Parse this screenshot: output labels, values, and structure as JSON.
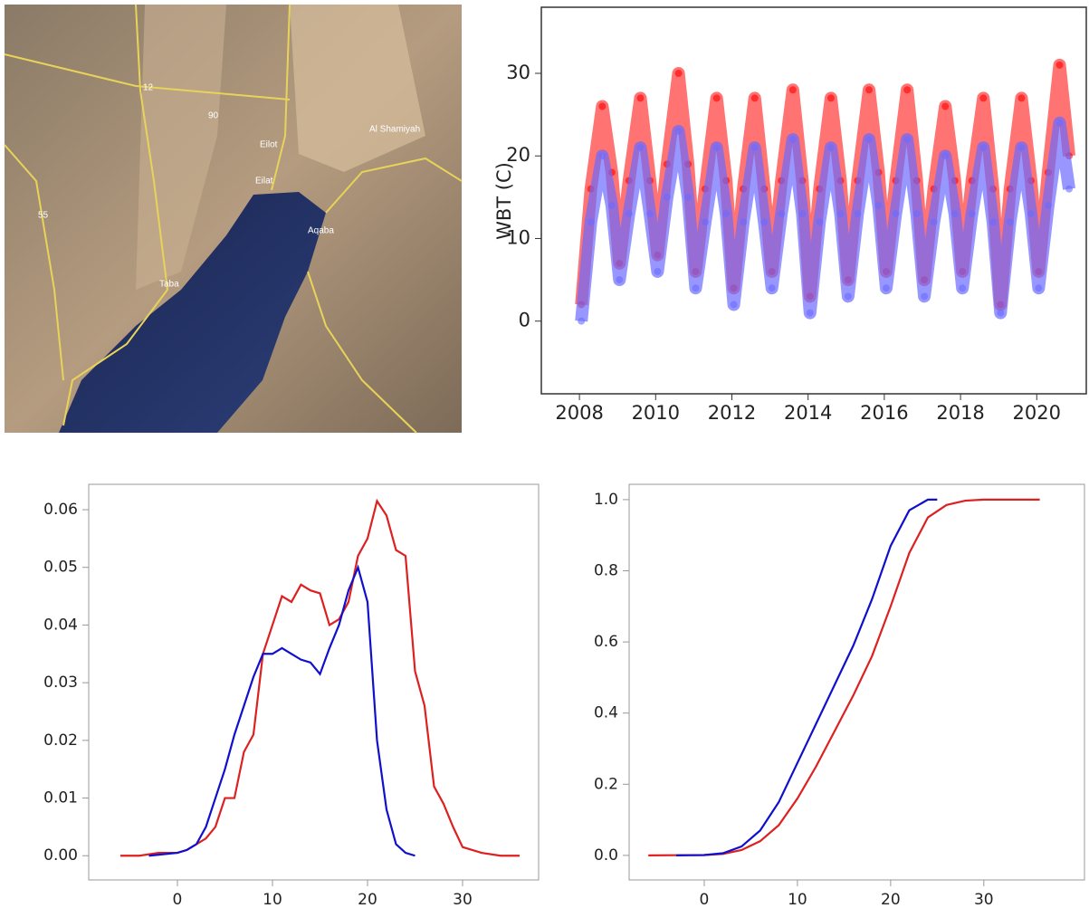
{
  "map": {
    "labels": [
      "Eilat",
      "Eilot",
      "Aqaba",
      "Taba",
      "Al Shamiyah",
      "90",
      "12",
      "55"
    ]
  },
  "chart_data": [
    {
      "type": "scatter",
      "y_label": "WBT (C)",
      "xlim": [
        2007.0,
        2021.3
      ],
      "xticks": [
        2008,
        2010,
        2012,
        2014,
        2016,
        2018,
        2020
      ],
      "ylim": [
        -8.8,
        38
      ],
      "yticks": [
        0,
        10,
        20,
        30
      ],
      "x": [
        2008.05,
        2008.3,
        2008.6,
        2008.85,
        2009.05,
        2009.3,
        2009.6,
        2009.85,
        2010.05,
        2010.3,
        2010.6,
        2010.85,
        2011.05,
        2011.3,
        2011.6,
        2011.85,
        2012.05,
        2012.3,
        2012.6,
        2012.85,
        2013.05,
        2013.3,
        2013.6,
        2013.85,
        2014.05,
        2014.3,
        2014.6,
        2014.85,
        2015.05,
        2015.3,
        2015.6,
        2015.85,
        2016.05,
        2016.3,
        2016.6,
        2016.85,
        2017.05,
        2017.3,
        2017.6,
        2017.85,
        2018.05,
        2018.3,
        2018.6,
        2018.85,
        2019.05,
        2019.3,
        2019.6,
        2019.85,
        2020.05,
        2020.3,
        2020.6,
        2020.85
      ],
      "series": [
        {
          "color": "#ff0000",
          "values": [
            2,
            16,
            26,
            18,
            7,
            17,
            27,
            17,
            8,
            19,
            30,
            19,
            6,
            16,
            27,
            17,
            4,
            16,
            27,
            16,
            6,
            17,
            28,
            17,
            3,
            16,
            27,
            17,
            5,
            17,
            28,
            18,
            6,
            17,
            28,
            17,
            5,
            16,
            26,
            17,
            6,
            17,
            27,
            16,
            2,
            16,
            27,
            17,
            6,
            18,
            31,
            20
          ]
        },
        {
          "color": "#6b6bff",
          "values": [
            0,
            12,
            20,
            14,
            5,
            13,
            21,
            13,
            6,
            15,
            23,
            15,
            4,
            12,
            21,
            13,
            2,
            12,
            21,
            12,
            4,
            13,
            22,
            13,
            1,
            12,
            21,
            13,
            3,
            13,
            22,
            14,
            4,
            13,
            22,
            13,
            3,
            12,
            20,
            13,
            4,
            13,
            21,
            12,
            1,
            12,
            21,
            13,
            4,
            14,
            24,
            16
          ]
        }
      ]
    },
    {
      "type": "line",
      "xlim": [
        -9.33,
        38
      ],
      "xticks": [
        0,
        10,
        20,
        30
      ],
      "ylim": [
        -0.0042,
        0.0644
      ],
      "yticks": [
        {
          "value": 0,
          "label": "0.00"
        },
        {
          "value": 0.01,
          "label": "0.01"
        },
        {
          "value": 0.02,
          "label": "0.02"
        },
        {
          "value": 0.03,
          "label": "0.03"
        },
        {
          "value": 0.04,
          "label": "0.04"
        },
        {
          "value": 0.05,
          "label": "0.05"
        },
        {
          "value": 0.06,
          "label": "0.06"
        }
      ],
      "series": [
        {
          "color": "#dd2020",
          "x": [
            -6,
            -4,
            -2,
            0,
            1,
            2,
            3,
            4,
            5,
            6,
            7,
            8,
            9,
            10,
            11,
            12,
            13,
            14,
            15,
            16,
            17,
            18,
            19,
            20,
            21,
            22,
            23,
            24,
            25,
            26,
            27,
            28,
            29,
            30,
            32,
            34,
            36
          ],
          "values": [
            0,
            0,
            0.0005,
            0.0005,
            0.001,
            0.002,
            0.003,
            0.005,
            0.01,
            0.01,
            0.018,
            0.021,
            0.035,
            0.04,
            0.045,
            0.044,
            0.047,
            0.046,
            0.0455,
            0.04,
            0.041,
            0.044,
            0.052,
            0.055,
            0.0615,
            0.059,
            0.053,
            0.052,
            0.032,
            0.026,
            0.012,
            0.009,
            0.005,
            0.0015,
            0.0005,
            0,
            0
          ]
        },
        {
          "color": "#1010cc",
          "x": [
            -3,
            0,
            1,
            2,
            3,
            4,
            5,
            6,
            7,
            8,
            9,
            10,
            11,
            12,
            13,
            14,
            15,
            16,
            17,
            18,
            19,
            20,
            21,
            22,
            23,
            24,
            25
          ],
          "values": [
            0,
            0.0005,
            0.001,
            0.002,
            0.005,
            0.01,
            0.015,
            0.021,
            0.026,
            0.031,
            0.035,
            0.035,
            0.036,
            0.035,
            0.034,
            0.0335,
            0.0315,
            0.036,
            0.04,
            0.046,
            0.05,
            0.044,
            0.02,
            0.008,
            0.002,
            0.0005,
            0
          ]
        }
      ]
    },
    {
      "type": "line",
      "xlim": [
        -8.06,
        40.8
      ],
      "xticks": [
        0,
        10,
        20,
        30
      ],
      "ylim": [
        -0.069,
        1.043
      ],
      "yticks": [
        {
          "value": 0,
          "label": "0.0"
        },
        0.2,
        0.4,
        0.6,
        0.8,
        {
          "value": 1,
          "label": "1.0"
        }
      ],
      "series": [
        {
          "color": "#dd2020",
          "x": [
            -6,
            0,
            2,
            4,
            6,
            8,
            10,
            12,
            14,
            16,
            18,
            20,
            22,
            24,
            26,
            28,
            30,
            36
          ],
          "values": [
            0,
            0.001,
            0.004,
            0.015,
            0.04,
            0.085,
            0.16,
            0.25,
            0.35,
            0.45,
            0.56,
            0.7,
            0.85,
            0.95,
            0.985,
            0.997,
            1,
            1
          ]
        },
        {
          "color": "#1010cc",
          "x": [
            -3,
            0,
            2,
            4,
            6,
            8,
            10,
            12,
            14,
            16,
            18,
            20,
            22,
            24,
            25
          ],
          "values": [
            0,
            0.001,
            0.006,
            0.025,
            0.07,
            0.15,
            0.26,
            0.37,
            0.48,
            0.59,
            0.72,
            0.87,
            0.97,
            1,
            1
          ]
        }
      ]
    }
  ]
}
